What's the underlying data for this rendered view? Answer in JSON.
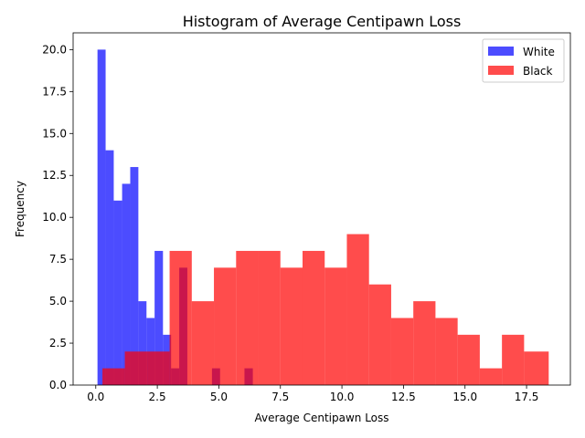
{
  "chart_data": {
    "type": "histogram",
    "title": "Histogram of Average Centipawn Loss",
    "xlabel": "Average Centipawn Loss",
    "ylabel": "Frequency",
    "xlim": [
      -0.92,
      19.28
    ],
    "ylim": [
      0,
      21
    ],
    "xticks": [
      "0.0",
      "2.5",
      "5.0",
      "7.5",
      "10.0",
      "12.5",
      "15.0",
      "17.5"
    ],
    "xtick_values": [
      0,
      2.5,
      5,
      7.5,
      10,
      12.5,
      15,
      17.5
    ],
    "yticks": [
      "0.0",
      "2.5",
      "5.0",
      "7.5",
      "10.0",
      "12.5",
      "15.0",
      "17.5",
      "20.0"
    ],
    "ytick_values": [
      0,
      2.5,
      5,
      7.5,
      10,
      12.5,
      15,
      17.5,
      20
    ],
    "grid": false,
    "legend": {
      "position": "top-right"
    },
    "series": [
      {
        "name": "White",
        "color": "#0000ff",
        "opacity": 0.7,
        "bin_edges": [
          0.07,
          0.4,
          0.73,
          1.07,
          1.4,
          1.73,
          2.06,
          2.39,
          2.73,
          3.06,
          3.39,
          3.72,
          4.05,
          4.38,
          4.72,
          5.05,
          5.38,
          5.71,
          6.04,
          6.38,
          6.71,
          7.04
        ],
        "counts": [
          20,
          14,
          11,
          12,
          13,
          5,
          4,
          8,
          3,
          1,
          7,
          0,
          0,
          0,
          1,
          0,
          0,
          0,
          1,
          0,
          0
        ]
      },
      {
        "name": "Black",
        "color": "#ff0000",
        "opacity": 0.7,
        "bin_edges": [
          0.27,
          1.18,
          2.09,
          3.0,
          3.9,
          4.8,
          5.7,
          6.6,
          7.5,
          8.4,
          9.3,
          10.2,
          11.1,
          12.0,
          12.9,
          13.8,
          14.7,
          15.6,
          16.5,
          17.4,
          18.4
        ],
        "counts": [
          1,
          2,
          2,
          8,
          5,
          7,
          8,
          8,
          7,
          8,
          7,
          9,
          6,
          4,
          5,
          4,
          3,
          1,
          3,
          2
        ]
      }
    ]
  }
}
